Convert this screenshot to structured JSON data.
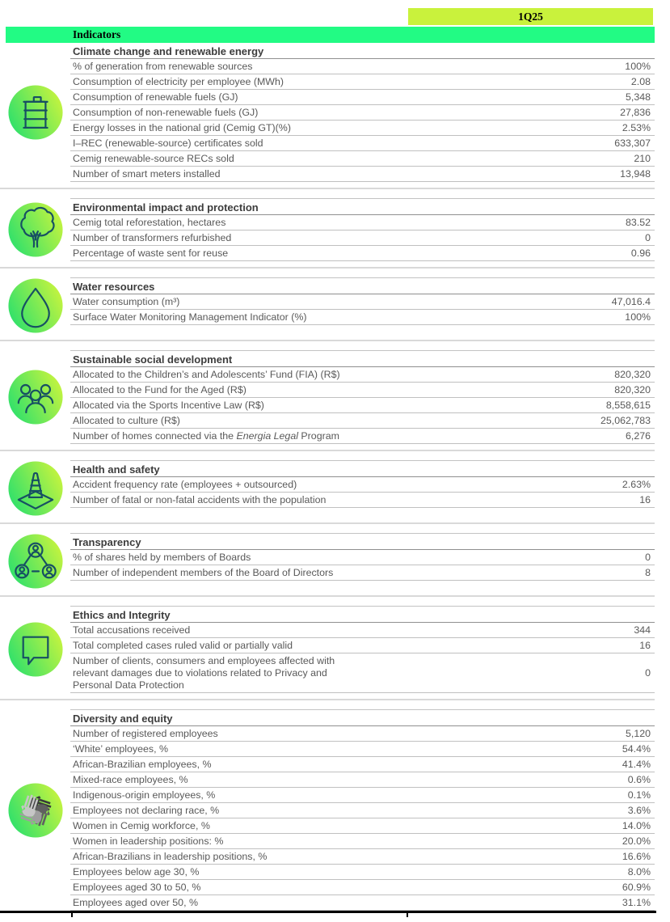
{
  "header": {
    "period_label": "1Q25",
    "indicators_label": "Indicators"
  },
  "colors": {
    "period_bar_bg": "#c9f23c",
    "indicators_bar_bg": "#22fb84",
    "icon_gradient_start": "#2ce06c",
    "icon_gradient_end": "#c8f43e",
    "icon_stroke": "#175063",
    "row_text": "#595959",
    "title_text": "#3d3d3d"
  },
  "sections": [
    {
      "title": "Climate change and renewable energy",
      "icon": "oil-barrel-icon",
      "rows": [
        {
          "label": "% of generation from renewable sources",
          "value": "100%"
        },
        {
          "label": "Consumption of electricity per employee (MWh)",
          "value": "2.08"
        },
        {
          "label": "Consumption of renewable fuels (GJ)",
          "value": "5,348"
        },
        {
          "label": "Consumption of non-renewable fuels (GJ)",
          "value": "27,836"
        },
        {
          "label": "Energy losses in the national grid (Cemig GT)(%)",
          "value": "2.53%"
        },
        {
          "label": "I–REC (renewable-source) certificates sold",
          "value": "633,307"
        },
        {
          "label": "Cemig renewable-source RECs sold",
          "value": "210"
        },
        {
          "label": "Number of smart meters installed",
          "value": "13,948"
        }
      ]
    },
    {
      "title": "Environmental impact and protection",
      "icon": "tree-icon",
      "rows": [
        {
          "label": "Cemig total reforestation, hectares",
          "value": "83.52"
        },
        {
          "label": "Number of transformers refurbished",
          "value": "0"
        },
        {
          "label": "Percentage of waste sent for reuse",
          "value": "0.96"
        }
      ]
    },
    {
      "title": "Water resources",
      "icon": "water-drop-icon",
      "rows": [
        {
          "label": "Water consumption (m³)",
          "value": "47,016.4"
        },
        {
          "label": "Surface Water Monitoring Management Indicator (%)",
          "value": "100%"
        }
      ]
    },
    {
      "title": "Sustainable social development",
      "icon": "people-group-icon",
      "rows": [
        {
          "label": "Allocated to the Children’s and Adolescents’ Fund (FIA) (R$)",
          "value": "820,320"
        },
        {
          "label": "Allocated to the Fund for the Aged (R$)",
          "value": "820,320"
        },
        {
          "label": "Allocated via the Sports Incentive Law (R$)",
          "value": "8,558,615"
        },
        {
          "label": "Allocated to culture (R$)",
          "value": "25,062,783"
        },
        {
          "label_parts": [
            {
              "text": "Number of homes connected via the ",
              "italic": false
            },
            {
              "text": "Energia Legal",
              "italic": true
            },
            {
              "text": " Program",
              "italic": false
            }
          ],
          "value": "6,276"
        }
      ]
    },
    {
      "title": "Health and safety",
      "icon": "traffic-cone-icon",
      "rows": [
        {
          "label": "Accident frequency rate (employees + outsourced)",
          "value": "2.63%"
        },
        {
          "label": "Number  of fatal or non-fatal accidents with the population",
          "value": "16"
        }
      ]
    },
    {
      "title": "Transparency",
      "icon": "people-network-icon",
      "rows": [
        {
          "label": "% of shares held by members of Boards",
          "value": "0"
        },
        {
          "label": "Number of independent members of the Board of Directors",
          "value": "8"
        }
      ]
    },
    {
      "title": "Ethics and Integrity",
      "icon": "speech-bubble-icon",
      "rows": [
        {
          "label": "Total accusations received",
          "value": "344"
        },
        {
          "label": "Total completed cases ruled valid or partially valid",
          "value": "16"
        },
        {
          "label_lines": [
            "Number of clients, consumers and employees affected with",
            "relevant damages due to violations related to Privacy and",
            "Personal Data Protection"
          ],
          "value": "0"
        }
      ]
    },
    {
      "title": "Diversity and equity",
      "icon": "diverse-hands-icon",
      "rows": [
        {
          "label": "Number of registered employees",
          "value": "5,120"
        },
        {
          "label": "‘White’ employees, %",
          "value": "54.4%"
        },
        {
          "label": "African-Brazilian employees, %",
          "value": "41.4%"
        },
        {
          "label": "Mixed-race employees, %",
          "value": "0.6%"
        },
        {
          "label": "Indigenous-origin employees, %",
          "value": "0.1%"
        },
        {
          "label": "Employees not declaring race, %",
          "value": "3.6%"
        },
        {
          "label": "Women in Cemig workforce, %",
          "value": "14.0%"
        },
        {
          "label": "Women in leadership positions: %",
          "value": "20.0%"
        },
        {
          "label": "African-Brazilians in leadership positions, %",
          "value": "16.6%"
        },
        {
          "label": "Employees below age 30, %",
          "value": "8.0%"
        },
        {
          "label": "Employees aged 30 to 50, %",
          "value": "60.9%"
        },
        {
          "label": "Employees aged over 50, %",
          "value": "31.1%"
        }
      ]
    }
  ]
}
